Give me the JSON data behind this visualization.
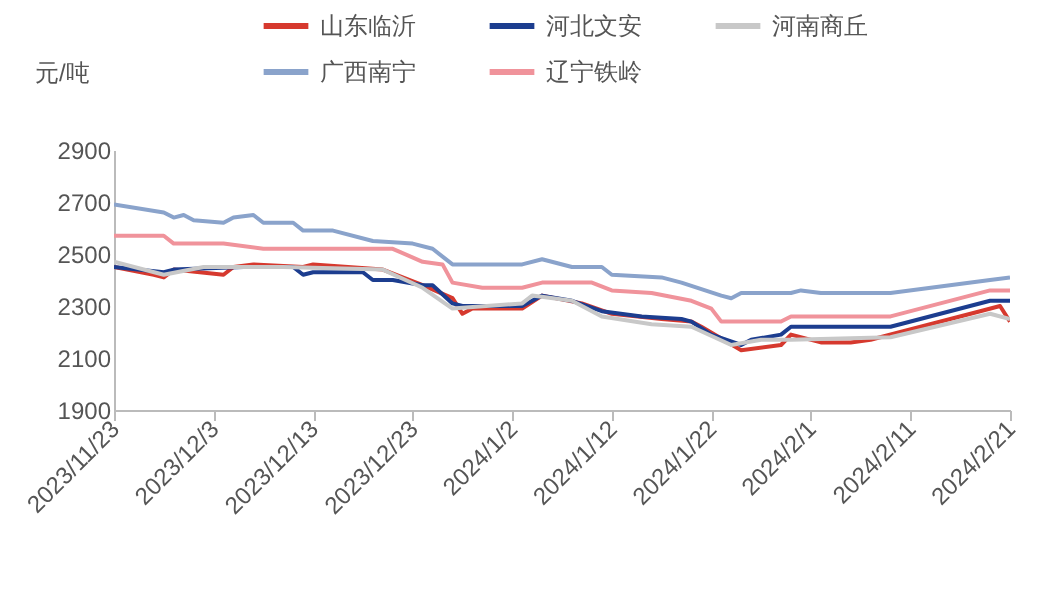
{
  "chart_data": {
    "type": "line",
    "ylabel": "元/吨",
    "xlim": [
      "2023-11-23",
      "2024-02-21"
    ],
    "xticks": [
      {
        "value": "2023-11-23",
        "label": "2023/11/23"
      },
      {
        "value": "2023-12-03",
        "label": "2023/12/3"
      },
      {
        "value": "2023-12-13",
        "label": "2023/12/13"
      },
      {
        "value": "2023-12-23",
        "label": "2023/12/23"
      },
      {
        "value": "2024-01-02",
        "label": "2024/1/2"
      },
      {
        "value": "2024-01-12",
        "label": "2024/1/12"
      },
      {
        "value": "2024-01-22",
        "label": "2024/1/22"
      },
      {
        "value": "2024-02-01",
        "label": "2024/2/1"
      },
      {
        "value": "2024-02-11",
        "label": "2024/2/11"
      },
      {
        "value": "2024-02-21",
        "label": "2024/2/21"
      }
    ],
    "ylim": [
      1900,
      2900
    ],
    "yticks": [
      1900,
      2100,
      2300,
      2500,
      2700,
      2900
    ],
    "grid": false,
    "legend": "top",
    "marker": "none",
    "line_style": "solid",
    "series": [
      {
        "name": "山东临沂",
        "color": "#d6392e",
        "x": [
          "2023-11-23",
          "2023-11-27",
          "2023-11-28",
          "2023-11-29",
          "2023-12-04",
          "2023-12-05",
          "2023-12-07",
          "2023-12-12",
          "2023-12-13",
          "2023-12-20",
          "2023-12-24",
          "2023-12-27",
          "2023-12-28",
          "2023-12-29",
          "2024-01-03",
          "2024-01-05",
          "2024-01-09",
          "2024-01-12",
          "2024-01-17",
          "2024-01-20",
          "2024-01-21",
          "2024-01-25",
          "2024-01-29",
          "2024-01-30",
          "2024-02-02",
          "2024-02-05",
          "2024-02-07",
          "2024-02-18",
          "2024-02-20",
          "2024-02-21"
        ],
        "values": [
          2450,
          2420,
          2410,
          2440,
          2420,
          2450,
          2460,
          2450,
          2460,
          2440,
          2380,
          2330,
          2270,
          2290,
          2290,
          2340,
          2310,
          2270,
          2250,
          2240,
          2220,
          2130,
          2150,
          2190,
          2160,
          2160,
          2170,
          2280,
          2300,
          2240
        ]
      },
      {
        "name": "河北文安",
        "color": "#1c3d8f",
        "x": [
          "2023-11-23",
          "2023-11-28",
          "2023-11-29",
          "2023-12-06",
          "2023-12-11",
          "2023-12-12",
          "2023-12-13",
          "2023-12-18",
          "2023-12-19",
          "2023-12-21",
          "2023-12-24",
          "2023-12-25",
          "2023-12-27",
          "2023-12-28",
          "2024-01-03",
          "2024-01-05",
          "2024-01-08",
          "2024-01-11",
          "2024-01-15",
          "2024-01-19",
          "2024-01-20",
          "2024-01-22",
          "2024-01-25",
          "2024-01-26",
          "2024-01-29",
          "2024-01-30",
          "2024-02-09",
          "2024-02-19",
          "2024-02-21"
        ],
        "values": [
          2450,
          2430,
          2440,
          2450,
          2450,
          2420,
          2430,
          2430,
          2400,
          2400,
          2380,
          2380,
          2310,
          2300,
          2300,
          2340,
          2320,
          2280,
          2260,
          2250,
          2240,
          2190,
          2150,
          2170,
          2190,
          2220,
          2220,
          2320,
          2320
        ]
      },
      {
        "name": "河南商丘",
        "color": "#c8c8c8",
        "x": [
          "2023-11-23",
          "2023-11-28",
          "2023-12-02",
          "2023-12-10",
          "2023-12-20",
          "2023-12-24",
          "2023-12-27",
          "2024-01-03",
          "2024-01-04",
          "2024-01-08",
          "2024-01-11",
          "2024-01-16",
          "2024-01-20",
          "2024-01-24",
          "2024-01-27",
          "2024-01-30",
          "2024-02-09",
          "2024-02-19",
          "2024-02-21"
        ],
        "values": [
          2470,
          2420,
          2450,
          2450,
          2440,
          2370,
          2290,
          2310,
          2340,
          2320,
          2260,
          2230,
          2220,
          2150,
          2170,
          2170,
          2180,
          2270,
          2250
        ]
      },
      {
        "name": "广西南宁",
        "color": "#8aa3cb",
        "x": [
          "2023-11-23",
          "2023-11-28",
          "2023-11-29",
          "2023-11-30",
          "2023-12-01",
          "2023-12-04",
          "2023-12-05",
          "2023-12-07",
          "2023-12-08",
          "2023-12-11",
          "2023-12-12",
          "2023-12-15",
          "2023-12-19",
          "2023-12-23",
          "2023-12-25",
          "2023-12-27",
          "2024-01-03",
          "2024-01-05",
          "2024-01-08",
          "2024-01-11",
          "2024-01-12",
          "2024-01-17",
          "2024-01-19",
          "2024-01-23",
          "2024-01-24",
          "2024-01-25",
          "2024-01-30",
          "2024-01-31",
          "2024-02-02",
          "2024-02-09",
          "2024-02-19",
          "2024-02-21"
        ],
        "values": [
          2690,
          2660,
          2640,
          2650,
          2630,
          2620,
          2640,
          2650,
          2620,
          2620,
          2590,
          2590,
          2550,
          2540,
          2520,
          2460,
          2460,
          2480,
          2450,
          2450,
          2420,
          2410,
          2390,
          2340,
          2330,
          2350,
          2350,
          2360,
          2350,
          2350,
          2400,
          2410
        ]
      },
      {
        "name": "辽宁铁岭",
        "color": "#f0939b",
        "x": [
          "2023-11-23",
          "2023-11-28",
          "2023-11-29",
          "2023-12-04",
          "2023-12-08",
          "2023-12-21",
          "2023-12-24",
          "2023-12-26",
          "2023-12-27",
          "2023-12-30",
          "2024-01-03",
          "2024-01-05",
          "2024-01-10",
          "2024-01-12",
          "2024-01-16",
          "2024-01-20",
          "2024-01-22",
          "2024-01-23",
          "2024-01-29",
          "2024-01-30",
          "2024-02-09",
          "2024-02-19",
          "2024-02-21"
        ],
        "values": [
          2570,
          2570,
          2540,
          2540,
          2520,
          2520,
          2470,
          2460,
          2390,
          2370,
          2370,
          2390,
          2390,
          2360,
          2350,
          2320,
          2290,
          2240,
          2240,
          2260,
          2260,
          2360,
          2360
        ]
      }
    ]
  }
}
